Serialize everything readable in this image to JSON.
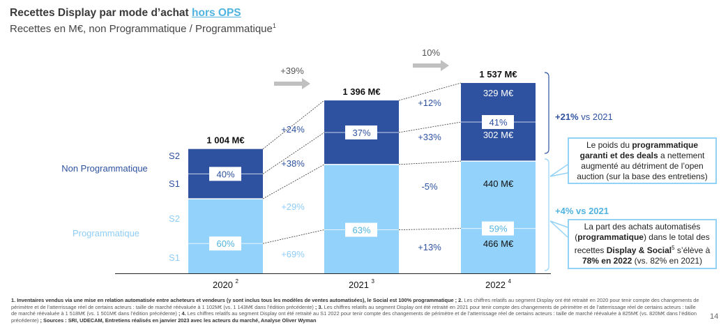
{
  "header": {
    "title_main": "Recettes Display par mode d’achat ",
    "title_link": "hors OPS",
    "subtitle": "Recettes en M€, non Programmatique / Programmatique",
    "subtitle_sup": "1"
  },
  "colors": {
    "non_programmatique": "#2e52a0",
    "programmatique": "#93d2fb",
    "arrow": "#c0c0c0",
    "accent": "#4fb3df"
  },
  "chart_data": {
    "type": "bar",
    "stacked": true,
    "title": "Recettes Display par mode d’achat hors OPS",
    "subtitle": "Recettes en M€, non Programmatique / Programmatique",
    "categories": [
      "2020",
      "2021",
      "2022"
    ],
    "category_sups": [
      "2",
      "3",
      "4"
    ],
    "totals": [
      1004,
      1396,
      1537
    ],
    "total_labels": [
      "1 004 M€",
      "1 396 M€",
      "1 537 M€"
    ],
    "series": [
      {
        "name": "Programmatique",
        "share_pct": [
          60,
          63,
          59
        ],
        "values": [
          602,
          879,
          906
        ]
      },
      {
        "name": "Non Programmatique",
        "share_pct": [
          40,
          37,
          41
        ],
        "values": [
          402,
          517,
          631
        ]
      }
    ],
    "share_labels": {
      "non_programmatique": [
        "40%",
        "37%",
        "41%"
      ],
      "programmatique": [
        "60%",
        "63%",
        "59%"
      ]
    },
    "semester_labels_2022": {
      "np_s2": "329 M€",
      "np_s1": "302 M€",
      "p_s2": "440 M€",
      "p_s1": "466 M€"
    },
    "growth_2020_2021": {
      "total": "+39%",
      "np_s2": "+24%",
      "np_s1": "+38%",
      "p_s2": "+29%",
      "p_s1": "+69%"
    },
    "growth_2021_2022": {
      "total": "10%",
      "np_s2": "+12%",
      "np_s1": "+33%",
      "p_s2": "-5%",
      "p_s1": "+13%"
    },
    "legend_left": {
      "non_programmatique": "Non Programmatique",
      "programmatique": "Programmatique",
      "s2": "S2",
      "s1": "S1"
    },
    "ylim": [
      0,
      1600
    ]
  },
  "annotations": {
    "np_delta_bold": "+21%",
    "np_delta_rest": " vs 2021",
    "p_delta": "+4% vs 2021",
    "callout1": {
      "t1": "Le poids du ",
      "b1": "programmatique garanti et des deals",
      "t2": " a nettement augmenté au détriment de l’open auction (sur la base des entretiens)"
    },
    "callout2": {
      "t1": "La part des achats automatisés (",
      "b1": "programmatique",
      "t2": ") dans le total des recettes ",
      "b2": "Display & Social",
      "sup": "5",
      "t3": " s’élève à ",
      "b3": "78% en 2022",
      "t4": " (vs. 82% en 2021)"
    }
  },
  "footnotes": {
    "f1b": "1. Inventaires vendus via une mise en relation automatisée entre acheteurs et vendeurs (y sont inclus tous les modèles de ventes automatisées), le Social est 100% programmatique ; 2.",
    "f2": " Les chiffres relatifs au segment Display ont été retraité en 2020 pour tenir compte des changements de périmètre et de l’atterrissage réel de certains acteurs : taille de marché réévaluée à 1 102M€ (vs. 1 143M€ dans l’édition précédente)",
    "f3b": " ; 3. ",
    "f3": "Les chiffres relatifs au segment Display ont été retraité en 2021 pour tenir compte des changements de périmètre et de l’atterrissage réel de certains acteurs : taille de marché réévaluée à 1 518M€ (vs. 1 501M€ dans l’édition précédente)",
    "f4b": " ; 4. ",
    "f4": "Les chiffres relatifs au segment Display ont été retraité au S1 2022 pour tenir compte des changements de périmètre et de l’atterrissage réel de certains acteurs : taille de marché réévaluée à 825M€ (vs. 820M€ dans l’édition précédente)",
    "sources": " ; Sources : SRI, UDECAM, Entretiens réalisés en janvier 2023 avec les acteurs du marché, Analyse Oliver Wyman"
  },
  "page_number": "14"
}
